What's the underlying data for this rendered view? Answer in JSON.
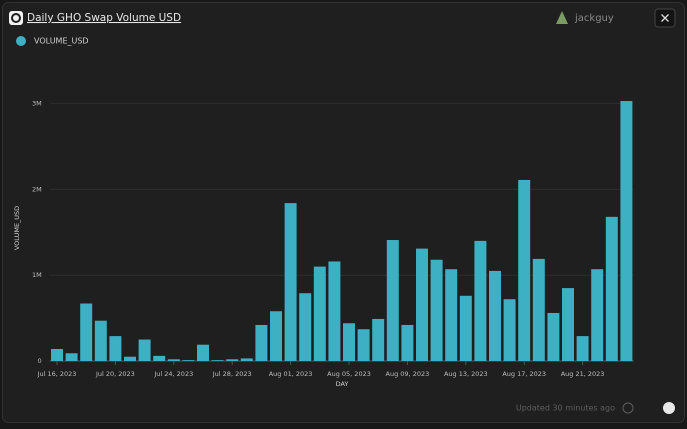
{
  "header": {
    "title": "Daily GHO Swap Volume USD",
    "user": "jackguy"
  },
  "footer": {
    "updated": "Updated 30 minutes ago"
  },
  "chart_data": {
    "type": "bar",
    "xlabel": "DAY",
    "ylabel": "VOLUME_USD",
    "categories": [
      "Jul 16, 2023",
      null,
      null,
      null,
      "Jul 20, 2023",
      null,
      null,
      null,
      "Jul 24, 2023",
      null,
      null,
      null,
      "Jul 28, 2023",
      null,
      null,
      null,
      "Aug 01, 2023",
      null,
      null,
      null,
      "Aug 05, 2023",
      null,
      null,
      null,
      "Aug 09, 2023",
      null,
      null,
      null,
      "Aug 13, 2023",
      null,
      null,
      null,
      "Aug 17, 2023",
      null,
      null,
      null,
      "Aug 21, 2023",
      null,
      null,
      null
    ],
    "series": [
      {
        "name": "VOLUME_USD",
        "color": "#3eb0c3",
        "values": [
          140000,
          90000,
          670000,
          470000,
          290000,
          50000,
          250000,
          60000,
          20000,
          10000,
          190000,
          10000,
          20000,
          30000,
          420000,
          580000,
          1840000,
          790000,
          1100000,
          1160000,
          440000,
          370000,
          490000,
          1410000,
          420000,
          1310000,
          1180000,
          1070000,
          760000,
          1400000,
          1050000,
          720000,
          2110000,
          1190000,
          560000,
          850000,
          290000,
          1070000,
          1680000,
          3030000
        ]
      }
    ],
    "ylim": [
      0,
      3100000
    ],
    "yticks": [
      0,
      {
        "value": 1000000,
        "label": "1M"
      },
      {
        "value": 2000000,
        "label": "2M"
      },
      {
        "value": 3000000,
        "label": "3M"
      }
    ],
    "grid": true,
    "legend": "top-left"
  }
}
